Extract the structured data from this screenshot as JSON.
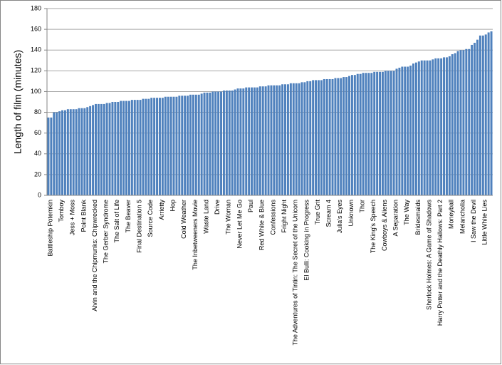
{
  "chart_data": {
    "type": "bar",
    "y_label": "Length of film (minutes)",
    "color": "#4f81bd",
    "grid": true,
    "ylim": [
      0,
      180
    ],
    "yticks": [
      0,
      20,
      40,
      60,
      80,
      100,
      120,
      140,
      160,
      180
    ],
    "categories": [
      "Battleship Potemkin",
      null,
      null,
      null,
      "Tomboy",
      null,
      null,
      null,
      "Jess + Moss",
      null,
      null,
      null,
      "Point Blank",
      null,
      null,
      null,
      "Alvin and the Chipmunks: Chipwrecked",
      null,
      null,
      null,
      "The Gerber Syndrome",
      null,
      null,
      null,
      "The Salt of Life",
      null,
      null,
      null,
      "The Beaver",
      null,
      null,
      null,
      "Final Destination 5",
      null,
      null,
      null,
      "Source Code",
      null,
      null,
      null,
      "Arrietty",
      null,
      null,
      null,
      "Hop",
      null,
      null,
      null,
      "Cold Weather",
      null,
      null,
      null,
      "The Inbetweeners Movie",
      null,
      null,
      null,
      "Waste Land",
      null,
      null,
      null,
      "Drive",
      null,
      null,
      null,
      "The Woman",
      null,
      null,
      null,
      "Never Let Me Go",
      null,
      null,
      null,
      "Paul",
      null,
      null,
      null,
      "Red White & Blue",
      null,
      null,
      null,
      "Confessions",
      null,
      null,
      null,
      "Fright Night",
      null,
      null,
      null,
      "The Adventures of Tintin: The Secret of the Unicorn",
      null,
      null,
      null,
      "El Bulli: Cooking in Progress",
      null,
      null,
      null,
      "True Grit",
      null,
      null,
      null,
      "Scream 4",
      null,
      null,
      null,
      "Julia's Eyes",
      null,
      null,
      null,
      "Unknown",
      null,
      null,
      null,
      "Thor",
      null,
      null,
      null,
      "The King's Speech",
      null,
      null,
      null,
      "Cowboys & Aliens",
      null,
      null,
      null,
      "A Separation",
      null,
      null,
      null,
      "The Way",
      null,
      null,
      null,
      "Bridesmaids",
      null,
      null,
      null,
      "Sherlock Holmes: A Game of Shadows",
      null,
      null,
      null,
      "Harry Potter and the Deathly Hallows: Part 2",
      null,
      null,
      null,
      "Moneyball",
      null,
      null,
      null,
      "Melancholia",
      null,
      null,
      null,
      "I Saw the Devil",
      null,
      null,
      null,
      "Little White Lies",
      null,
      null,
      null
    ],
    "values": [
      75,
      75,
      80,
      80,
      81,
      82,
      82,
      83,
      83,
      83,
      83,
      84,
      84,
      84,
      85,
      86,
      87,
      88,
      88,
      88,
      88,
      89,
      89,
      90,
      90,
      90,
      91,
      91,
      91,
      91,
      92,
      92,
      92,
      92,
      93,
      93,
      93,
      94,
      94,
      94,
      94,
      94,
      95,
      95,
      95,
      95,
      95,
      96,
      96,
      96,
      96,
      97,
      97,
      97,
      97,
      98,
      99,
      99,
      99,
      100,
      100,
      100,
      100,
      101,
      101,
      101,
      101,
      102,
      103,
      103,
      103,
      104,
      104,
      104,
      104,
      104,
      105,
      105,
      105,
      106,
      106,
      106,
      106,
      106,
      107,
      107,
      107,
      108,
      108,
      108,
      108,
      109,
      109,
      110,
      110,
      111,
      111,
      111,
      111,
      112,
      112,
      112,
      112,
      113,
      113,
      113,
      114,
      114,
      115,
      116,
      116,
      117,
      117,
      118,
      118,
      118,
      118,
      119,
      119,
      119,
      119,
      120,
      120,
      120,
      120,
      122,
      123,
      124,
      124,
      124,
      125,
      127,
      128,
      129,
      130,
      130,
      130,
      130,
      131,
      132,
      132,
      132,
      133,
      133,
      134,
      136,
      137,
      139,
      140,
      140,
      141,
      141,
      145,
      147,
      150,
      154,
      154,
      155,
      157,
      158
    ]
  }
}
